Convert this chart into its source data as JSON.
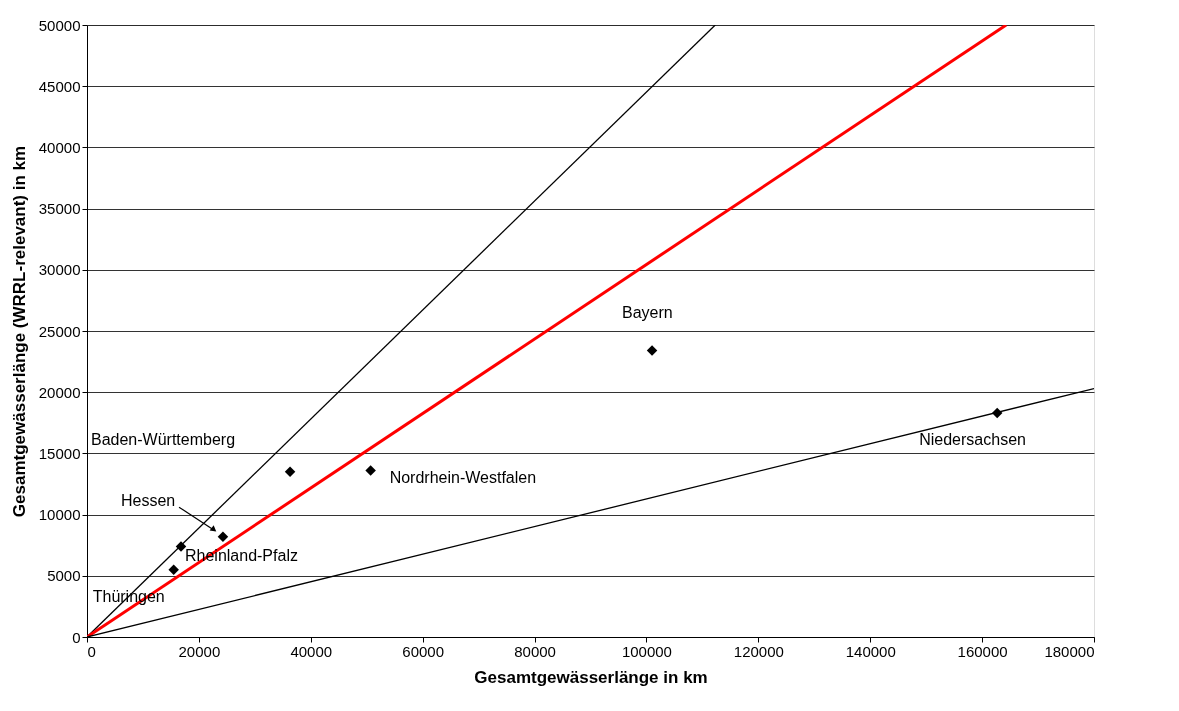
{
  "chart_data": {
    "type": "scatter",
    "xlabel": "Gesamtgewässerlänge in km",
    "ylabel": "Gesamtgewässerlänge (WRRL-relevant) in km",
    "series": [
      {
        "type": "scatter",
        "color": "#000000",
        "marker": "diamond",
        "x": [
          15500,
          16800,
          24300,
          36300,
          50700,
          101000,
          162700
        ],
        "values": [
          5500,
          7400,
          8200,
          13500,
          13600,
          23400,
          18300
        ]
      },
      {
        "type": "line",
        "color": "#000000",
        "x": [
          0,
          112300
        ],
        "values": [
          0,
          50000
        ]
      },
      {
        "type": "line",
        "color": "#ff0000",
        "x": [
          0,
          164300
        ],
        "values": [
          0,
          50000
        ]
      },
      {
        "type": "line",
        "color": "#000000",
        "x": [
          0,
          180000
        ],
        "values": [
          0,
          20300
        ]
      }
    ],
    "annotations": [
      "Baden-Württemberg",
      "Hessen",
      {
        "text": "Rheinland-Pfalz",
        "x": 16800,
        "y": 7400
      },
      {
        "text": "Thüringen",
        "x": 15500,
        "y": 5500
      },
      {
        "text": "Nordrhein-Westfalen",
        "x": 50700,
        "y": 13600
      },
      {
        "text": "Bayern",
        "x": 101000,
        "y": 23400
      },
      {
        "text": "Niedersachsen",
        "x": 162700,
        "y": 18300
      }
    ],
    "xlim": [
      0,
      180000
    ],
    "xticks": [
      0,
      20000,
      40000,
      60000,
      80000,
      100000,
      120000,
      140000,
      160000,
      180000
    ],
    "ylim": [
      0,
      50000
    ],
    "yticks": [
      0,
      5000,
      10000,
      15000,
      20000,
      25000,
      30000,
      35000,
      40000,
      45000,
      50000
    ],
    "grid": "y",
    "legend": false,
    "line_style": "solid"
  }
}
